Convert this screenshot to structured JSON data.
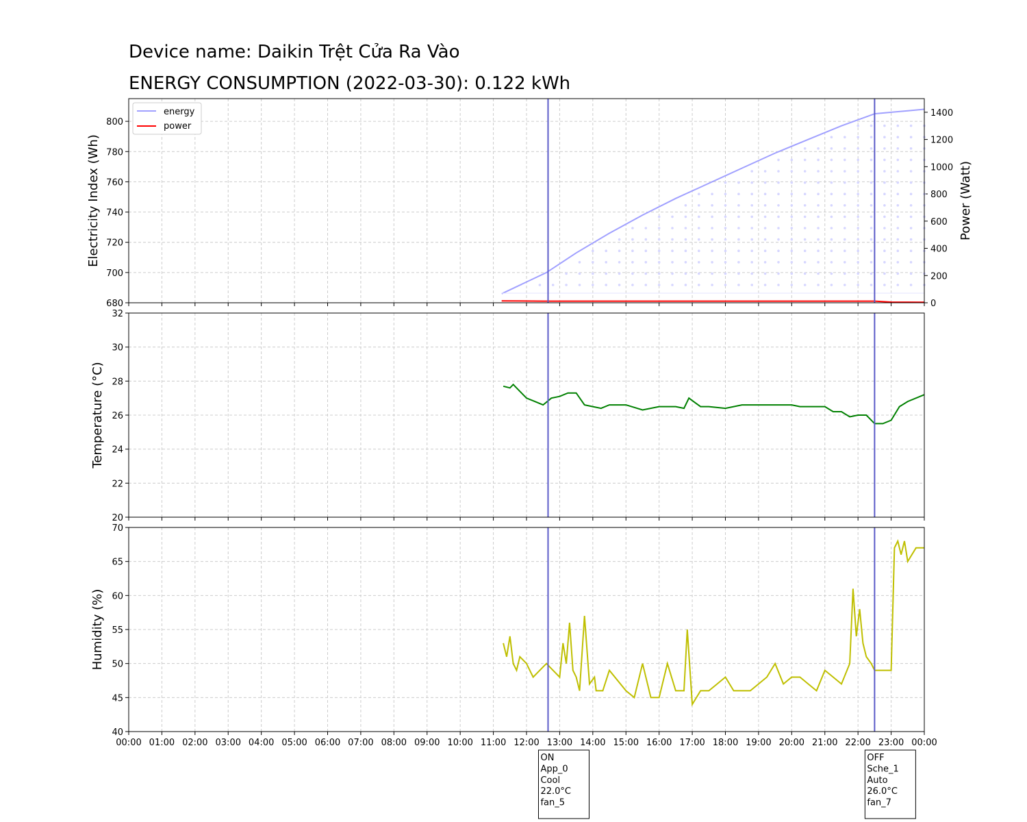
{
  "title_line1": "Device name: Daikin Trệt Cửa Ra Vào",
  "title_line2": "ENERGY CONSUMPTION (2022-03-30): 0.122 kWh",
  "colors": {
    "energy": "#a0a0ff",
    "power": "#ff0000",
    "temperature": "#008000",
    "humidity": "#bfbf00",
    "event_line": "#5a5ac8",
    "grid": "#cccccc"
  },
  "x_axis": {
    "ticks": [
      "00:00",
      "01:00",
      "02:00",
      "03:00",
      "04:00",
      "05:00",
      "06:00",
      "07:00",
      "08:00",
      "09:00",
      "10:00",
      "11:00",
      "12:00",
      "13:00",
      "14:00",
      "15:00",
      "16:00",
      "17:00",
      "18:00",
      "19:00",
      "20:00",
      "21:00",
      "22:00",
      "23:00",
      "00:00"
    ]
  },
  "chart_data": [
    {
      "type": "line",
      "panel": "energy",
      "ylabel": "Electricity Index (Wh)",
      "y2label": "Power (Watt)",
      "ylim": [
        680,
        815
      ],
      "y_ticks": [
        680,
        700,
        720,
        740,
        760,
        780,
        800
      ],
      "y2lim": [
        0,
        1500
      ],
      "y2_ticks": [
        0,
        200,
        400,
        600,
        800,
        1000,
        1200,
        1400
      ],
      "grid": true,
      "legend_position": "upper-left",
      "series": [
        {
          "name": "energy",
          "x_hours": [
            11.25,
            12.6,
            13.5,
            14.5,
            15.5,
            16.5,
            17.5,
            18.5,
            19.5,
            20.5,
            21.5,
            22.5,
            23.0,
            23.5,
            24.0
          ],
          "y": [
            686,
            700,
            713,
            726,
            738,
            749,
            759,
            769,
            779,
            788,
            797,
            805,
            806,
            807,
            808
          ]
        },
        {
          "name": "power",
          "x_hours": [
            11.25,
            12.5,
            14.0,
            16.0,
            18.0,
            20.0,
            22.0,
            22.5,
            23.0,
            24.0
          ],
          "y": [
            14,
            12,
            12,
            12,
            12,
            12,
            12,
            12,
            5,
            4
          ]
        }
      ]
    },
    {
      "type": "line",
      "panel": "temperature",
      "ylabel": "Temperature (°C)",
      "ylim": [
        20,
        32
      ],
      "y_ticks": [
        20,
        22,
        24,
        26,
        28,
        30,
        32
      ],
      "grid": true,
      "series": [
        {
          "x_hours": [
            11.3,
            11.5,
            11.6,
            11.75,
            12.0,
            12.25,
            12.5,
            12.75,
            13.0,
            13.25,
            13.5,
            13.75,
            14.0,
            14.25,
            14.5,
            15.0,
            15.5,
            16.0,
            16.5,
            16.75,
            16.9,
            17.25,
            17.5,
            18.0,
            18.5,
            19.0,
            19.5,
            20.0,
            20.25,
            20.5,
            21.0,
            21.25,
            21.5,
            21.75,
            22.0,
            22.25,
            22.5,
            22.75,
            23.0,
            23.25,
            23.5,
            24.0
          ],
          "y": [
            27.7,
            27.6,
            27.8,
            27.5,
            27.0,
            26.8,
            26.6,
            27.0,
            27.1,
            27.3,
            27.3,
            26.6,
            26.5,
            26.4,
            26.6,
            26.6,
            26.3,
            26.5,
            26.5,
            26.4,
            27.0,
            26.5,
            26.5,
            26.4,
            26.6,
            26.6,
            26.6,
            26.6,
            26.5,
            26.5,
            26.5,
            26.2,
            26.2,
            25.9,
            26.0,
            26.0,
            25.5,
            25.5,
            25.7,
            26.5,
            26.8,
            27.2
          ]
        }
      ]
    },
    {
      "type": "line",
      "panel": "humidity",
      "ylabel": "Humidity (%)",
      "ylim": [
        40,
        70
      ],
      "y_ticks": [
        40,
        45,
        50,
        55,
        60,
        65,
        70
      ],
      "grid": true,
      "series": [
        {
          "x_hours": [
            11.3,
            11.4,
            11.5,
            11.6,
            11.7,
            11.8,
            12.0,
            12.1,
            12.2,
            12.4,
            12.6,
            12.8,
            13.0,
            13.1,
            13.2,
            13.3,
            13.4,
            13.5,
            13.6,
            13.75,
            13.9,
            14.05,
            14.1,
            14.3,
            14.5,
            15.0,
            15.25,
            15.5,
            15.75,
            16.0,
            16.25,
            16.5,
            16.75,
            16.85,
            17.0,
            17.25,
            17.5,
            17.75,
            18.0,
            18.25,
            18.5,
            18.75,
            19.0,
            19.25,
            19.5,
            19.75,
            20.0,
            20.25,
            20.5,
            20.75,
            21.0,
            21.25,
            21.5,
            21.75,
            21.85,
            21.95,
            22.05,
            22.15,
            22.25,
            22.4,
            22.5,
            22.75,
            23.0,
            23.1,
            23.2,
            23.3,
            23.4,
            23.5,
            23.75,
            24.0
          ],
          "y": [
            53,
            51,
            54,
            50,
            49,
            51,
            50,
            49,
            48,
            49,
            50,
            49,
            48,
            53,
            50,
            56,
            49,
            48,
            46,
            57,
            47,
            48,
            46,
            46,
            49,
            46,
            45,
            50,
            45,
            45,
            50,
            46,
            46,
            55,
            44,
            46,
            46,
            47,
            48,
            46,
            46,
            46,
            47,
            48,
            50,
            47,
            48,
            48,
            47,
            46,
            49,
            48,
            47,
            50,
            61,
            54,
            58,
            53,
            51,
            50,
            49,
            49,
            49,
            67,
            68,
            66,
            68,
            65,
            67,
            67
          ]
        }
      ]
    }
  ],
  "events": [
    {
      "x_hours": 12.65,
      "label": [
        "ON",
        "App_0",
        "Cool",
        "22.0°C",
        "fan_5"
      ]
    },
    {
      "x_hours": 22.5,
      "label": [
        "OFF",
        "Sche_1",
        "Auto",
        "26.0°C",
        "fan_7"
      ]
    }
  ]
}
